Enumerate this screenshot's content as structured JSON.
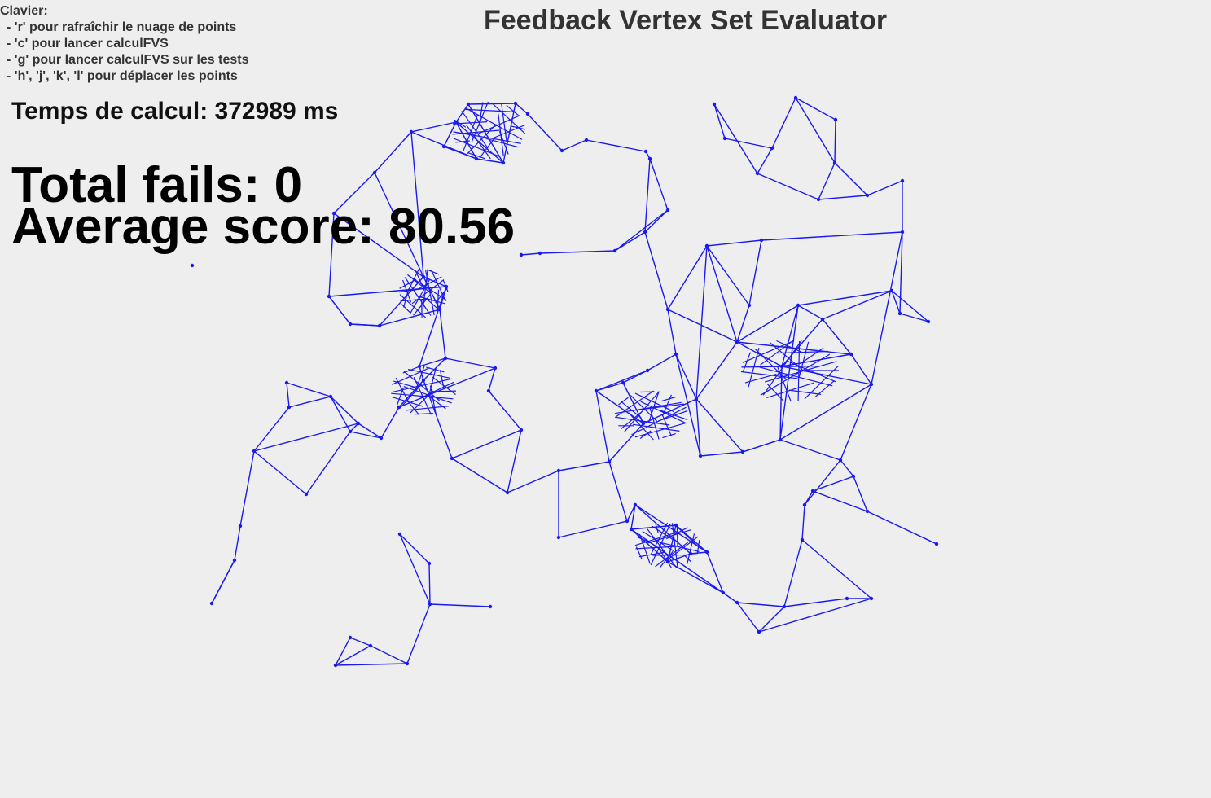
{
  "window": {
    "title": "Feedback Vertex Set Evaluator"
  },
  "keyboard_help": {
    "header": "Clavier:",
    "lines": [
      "- 'r' pour rafraîchir le nuage de points",
      "- 'c' pour lancer calculFVS",
      "- 'g' pour lancer calculFVS sur les tests",
      "- 'h', 'j', 'k', 'l' pour déplacer les points"
    ]
  },
  "stats": {
    "time": "Temps de calcul: 372989 ms",
    "fails": "Total fails: 0",
    "score": "Average score: 80.56"
  },
  "graph": {
    "edge_color": "#1a1aee",
    "node_color": "#1a1aee"
  }
}
